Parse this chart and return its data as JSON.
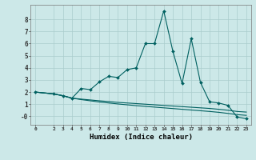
{
  "xlabel": "Humidex (Indice chaleur)",
  "background_color": "#cce8e8",
  "grid_color": "#aacccc",
  "line_color": "#006060",
  "xlim": [
    -0.5,
    23.5
  ],
  "ylim": [
    -0.7,
    9.2
  ],
  "xticks": [
    0,
    2,
    3,
    4,
    5,
    6,
    7,
    8,
    9,
    10,
    11,
    12,
    13,
    14,
    15,
    16,
    17,
    18,
    19,
    20,
    21,
    22,
    23
  ],
  "yticks": [
    0,
    1,
    2,
    3,
    4,
    5,
    6,
    7,
    8
  ],
  "ytick_labels": [
    "-0",
    "1",
    "2",
    "3",
    "4",
    "5",
    "6",
    "7",
    "8"
  ],
  "line1_x": [
    0,
    2,
    3,
    4,
    5,
    6,
    7,
    8,
    9,
    10,
    11,
    12,
    13,
    14,
    15,
    16,
    17,
    18,
    19,
    20,
    21,
    22,
    23
  ],
  "line1_y": [
    2.0,
    1.85,
    1.7,
    1.5,
    2.3,
    2.2,
    2.85,
    3.3,
    3.2,
    3.85,
    4.0,
    6.0,
    6.0,
    8.7,
    5.35,
    2.7,
    6.4,
    2.8,
    1.2,
    1.1,
    0.9,
    -0.05,
    -0.2
  ],
  "line2_x": [
    0,
    2,
    3,
    4,
    5,
    6,
    7,
    8,
    9,
    10,
    11,
    12,
    13,
    14,
    15,
    16,
    17,
    18,
    19,
    20,
    21,
    22,
    23
  ],
  "line2_y": [
    2.0,
    1.85,
    1.7,
    1.5,
    1.42,
    1.35,
    1.28,
    1.22,
    1.15,
    1.1,
    1.05,
    1.0,
    0.95,
    0.9,
    0.85,
    0.8,
    0.75,
    0.7,
    0.65,
    0.58,
    0.5,
    0.4,
    0.35
  ],
  "line3_x": [
    0,
    2,
    3,
    4,
    5,
    6,
    7,
    8,
    9,
    10,
    11,
    12,
    13,
    14,
    15,
    16,
    17,
    18,
    19,
    20,
    21,
    22,
    23
  ],
  "line3_y": [
    2.0,
    1.85,
    1.7,
    1.5,
    1.38,
    1.28,
    1.18,
    1.1,
    1.02,
    0.95,
    0.88,
    0.82,
    0.76,
    0.7,
    0.64,
    0.58,
    0.52,
    0.46,
    0.4,
    0.33,
    0.24,
    0.14,
    0.08
  ]
}
